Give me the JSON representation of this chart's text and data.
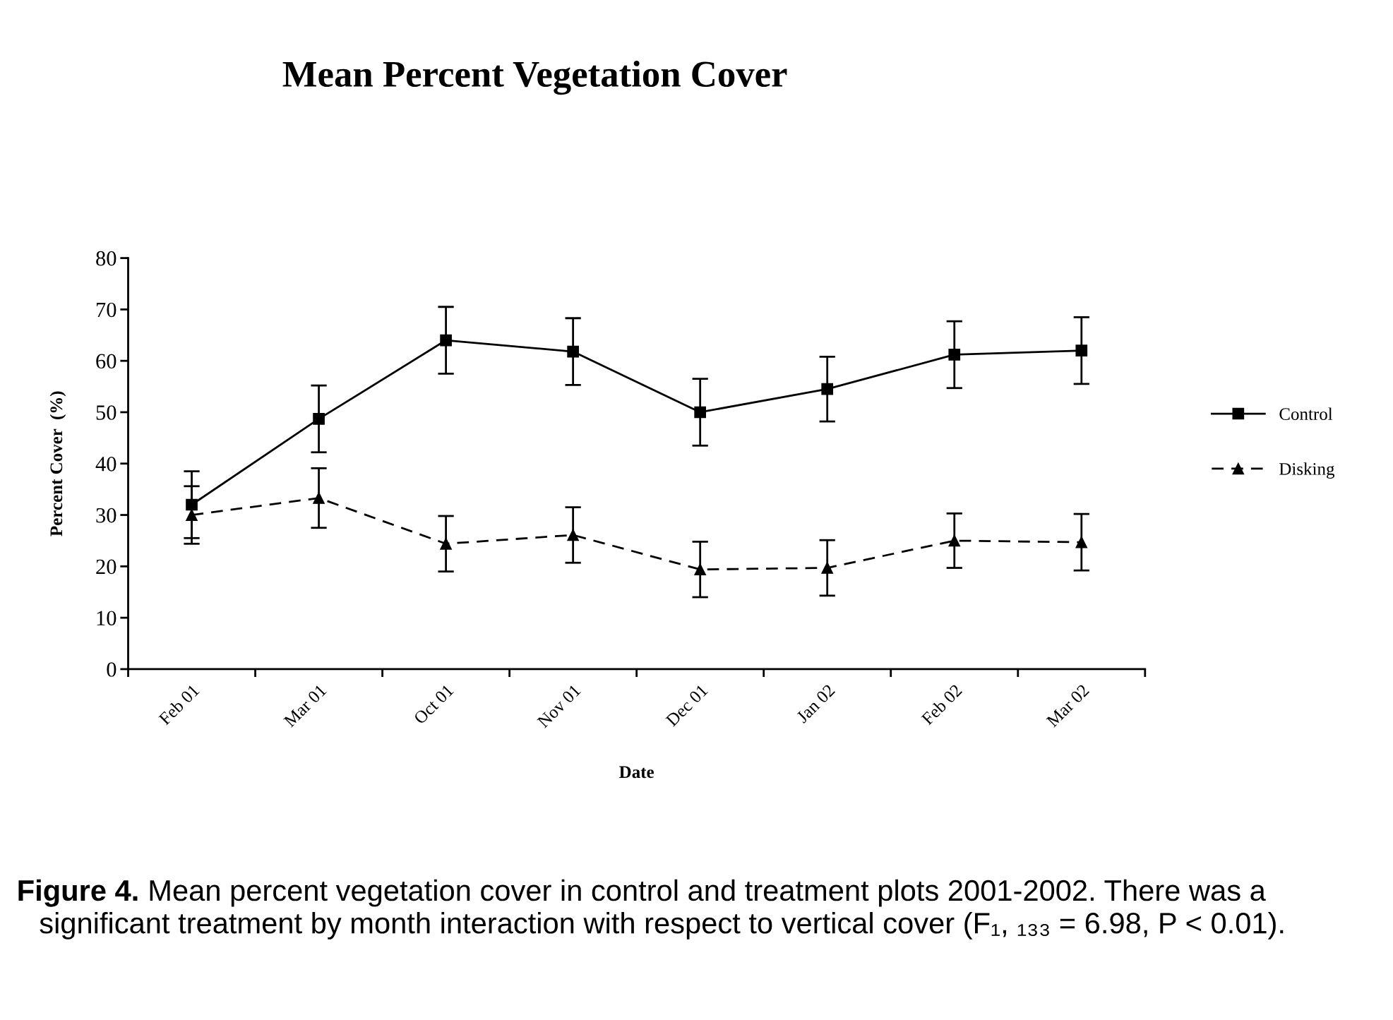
{
  "chart_data": {
    "type": "line",
    "title": "Mean Percent Vegetation Cover",
    "xlabel": "Date",
    "ylabel": "Percent Cover  (%)",
    "categories": [
      "Feb 01",
      "Mar 01",
      "Oct 01",
      "Nov 01",
      "Dec 01",
      "Jan 02",
      "Feb 02",
      "Mar 02"
    ],
    "series": [
      {
        "name": "Control",
        "color": "#000000",
        "marker": "square",
        "line_style": "solid",
        "values": [
          32,
          48.7,
          64,
          61.8,
          50,
          54.5,
          61.2,
          62
        ],
        "errors": [
          6.5,
          6.5,
          6.5,
          6.5,
          6.5,
          6.3,
          6.5,
          6.5
        ]
      },
      {
        "name": "Disking",
        "color": "#000000",
        "marker": "triangle",
        "line_style": "dashed",
        "values": [
          30,
          33.3,
          24.4,
          26.1,
          19.4,
          19.7,
          25,
          24.7
        ],
        "errors": [
          5.6,
          5.8,
          5.4,
          5.4,
          5.4,
          5.4,
          5.3,
          5.5
        ]
      }
    ],
    "ylim": [
      0,
      80
    ],
    "yticks": [
      0,
      10,
      20,
      30,
      40,
      50,
      60,
      70,
      80
    ],
    "grid": false,
    "legend": "right",
    "annotations": [
      "Figure 4.",
      "Mean percent vegetation cover in control and treatment plots 2001-2002. There was a",
      "significant treatment by month interaction with respect to vertical cover (F₁, ₁₃₃ = 6.98, P < 0.01)."
    ]
  }
}
